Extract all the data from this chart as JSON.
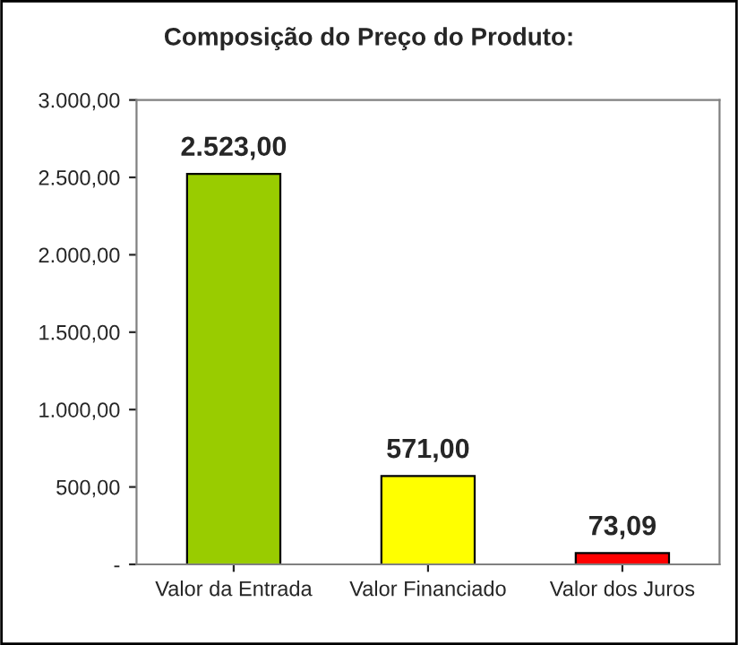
{
  "chart_data": {
    "type": "bar",
    "title": "Composição do Preço do Produto:",
    "categories": [
      "Valor da Entrada",
      "Valor Financiado",
      "Valor dos Juros"
    ],
    "values": [
      2523.0,
      571.0,
      73.09
    ],
    "colors": [
      "#99cc00",
      "#ffff00",
      "#ff0000"
    ],
    "value_labels": [
      "2.523,00",
      "571,00",
      "73,09"
    ],
    "ylim": [
      0,
      3000
    ],
    "yticks": [
      {
        "value": 0,
        "label": "-"
      },
      {
        "value": 500,
        "label": "500,00"
      },
      {
        "value": 1000,
        "label": "1.000,00"
      },
      {
        "value": 1500,
        "label": "1.500,00"
      },
      {
        "value": 2000,
        "label": "2.000,00"
      },
      {
        "value": 2500,
        "label": "2.500,00"
      },
      {
        "value": 3000,
        "label": "3.000,00"
      }
    ],
    "grid": false
  }
}
